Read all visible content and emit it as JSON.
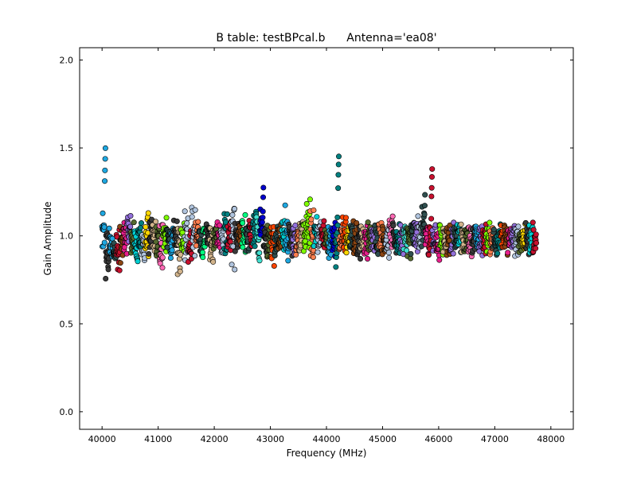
{
  "chart_data": {
    "type": "scatter",
    "title": "B table: testBPcal.b      Antenna='ea08'",
    "xlabel": "Frequency (MHz)",
    "ylabel": "Gain Amplitude",
    "xlim": [
      39600,
      48400
    ],
    "ylim": [
      -0.1,
      2.07
    ],
    "xticks": [
      40000,
      41000,
      42000,
      43000,
      44000,
      45000,
      46000,
      47000,
      48000
    ],
    "yticks": [
      0.0,
      0.5,
      1.0,
      1.5,
      2.0
    ],
    "xtick_labels": [
      "40000",
      "41000",
      "42000",
      "43000",
      "44000",
      "45000",
      "46000",
      "47000",
      "48000"
    ],
    "ytick_labels": [
      "0.0",
      "0.5",
      "1.0",
      "1.5",
      "2.0"
    ],
    "grid": false,
    "legend": "none",
    "marker": "circle",
    "marker_edge_color": "#000000",
    "spw_start": 40000,
    "spw_width": 64,
    "channels_per_spw": 16,
    "palette": [
      "#1ea7e0",
      "#3a3a3a",
      "#c8102e",
      "#e91e8c",
      "#ffd700",
      "#7fff00",
      "#00ced1",
      "#8b4513",
      "#ff7f50",
      "#9370db",
      "#008080",
      "#b0c4de",
      "#ff69b4",
      "#00ff7f",
      "#0000cd",
      "#d2b48c",
      "#2f4f4f",
      "#ff4500",
      "#556b2f",
      "#40e0d0"
    ],
    "spectral_windows": [
      {
        "center": 1.0,
        "spread": 0.24,
        "color": "#1ea7e0",
        "spike": [
          1.49,
          1.5
        ]
      },
      {
        "center": 0.92,
        "spread": 0.3,
        "color": "#3a3a3a"
      },
      {
        "center": 0.95,
        "spread": 0.14,
        "color": "#1ea7e0"
      },
      {
        "center": 0.92,
        "spread": 0.1,
        "color": "#2f4f4f"
      },
      {
        "center": 0.9,
        "spread": 0.25,
        "color": "#c8102e"
      },
      {
        "center": 0.95,
        "spread": 0.18,
        "color": "#8b4513"
      },
      {
        "center": 1.0,
        "spread": 0.16,
        "color": "#e91e8c"
      },
      {
        "center": 1.02,
        "spread": 0.16,
        "color": "#9370db"
      },
      {
        "center": 0.98,
        "spread": 0.16,
        "color": "#556b2f"
      },
      {
        "center": 0.95,
        "spread": 0.18,
        "color": "#00ced1"
      },
      {
        "center": 0.98,
        "spread": 0.14,
        "color": "#008080"
      },
      {
        "center": 0.95,
        "spread": 0.16,
        "color": "#b0c4de"
      },
      {
        "center": 0.98,
        "spread": 0.3,
        "color": "#ffd700"
      },
      {
        "center": 1.0,
        "spread": 0.16,
        "color": "#3a3a3a"
      },
      {
        "center": 0.98,
        "spread": 0.16,
        "color": "#d2b48c"
      },
      {
        "center": 0.96,
        "spread": 0.18,
        "color": "#556b2f"
      },
      {
        "center": 0.96,
        "spread": 0.26,
        "color": "#ff69b4"
      },
      {
        "center": 1.0,
        "spread": 0.15,
        "color": "#7fff00"
      },
      {
        "center": 0.98,
        "spread": 0.14,
        "color": "#2f4f4f"
      },
      {
        "center": 0.96,
        "spread": 0.16,
        "color": "#1ea7e0"
      },
      {
        "center": 1.0,
        "spread": 0.13,
        "color": "#3a3a3a"
      },
      {
        "center": 0.92,
        "spread": 0.24,
        "color": "#d2b48c"
      },
      {
        "center": 1.0,
        "spread": 0.16,
        "color": "#7fff00"
      },
      {
        "center": 1.0,
        "spread": 0.26,
        "color": "#b0c4de"
      },
      {
        "center": 0.96,
        "spread": 0.16,
        "color": "#c8102e"
      },
      {
        "center": 1.02,
        "spread": 0.24,
        "color": "#b0c4de"
      },
      {
        "center": 1.0,
        "spread": 0.16,
        "color": "#ff7f50"
      },
      {
        "center": 0.96,
        "spread": 0.14,
        "color": "#2f4f4f"
      },
      {
        "center": 0.98,
        "spread": 0.16,
        "color": "#00ff7f"
      },
      {
        "center": 1.0,
        "spread": 0.12,
        "color": "#3a3a3a"
      },
      {
        "center": 0.96,
        "spread": 0.16,
        "color": "#d2b48c"
      },
      {
        "center": 1.0,
        "spread": 0.12,
        "color": "#556b2f"
      },
      {
        "center": 1.0,
        "spread": 0.16,
        "color": "#e91e8c"
      },
      {
        "center": 0.96,
        "spread": 0.16,
        "color": "#b0c4de"
      },
      {
        "center": 1.0,
        "spread": 0.24,
        "color": "#008080"
      },
      {
        "center": 1.0,
        "spread": 0.18,
        "color": "#c8102e"
      },
      {
        "center": 1.0,
        "spread": 0.28,
        "color": "#b0c4de"
      },
      {
        "center": 0.98,
        "spread": 0.14,
        "color": "#3a3a3a"
      },
      {
        "center": 1.0,
        "spread": 0.14,
        "color": "#8b4513"
      },
      {
        "center": 1.02,
        "spread": 0.18,
        "color": "#00ff7f"
      },
      {
        "center": 0.98,
        "spread": 0.14,
        "color": "#2f4f4f"
      },
      {
        "center": 1.0,
        "spread": 0.16,
        "color": "#c8102e"
      },
      {
        "center": 1.02,
        "spread": 0.22,
        "color": "#008080"
      },
      {
        "center": 0.98,
        "spread": 0.24,
        "color": "#40e0d0"
      },
      {
        "center": 1.08,
        "spread": 0.16,
        "color": "#0000cd",
        "spike": [
          1.25,
          1.3
        ]
      },
      {
        "center": 0.98,
        "spread": 0.14,
        "color": "#3a3a3a"
      },
      {
        "center": 0.98,
        "spread": 0.16,
        "color": "#556b2f"
      },
      {
        "center": 0.96,
        "spread": 0.2,
        "color": "#ff4500"
      },
      {
        "center": 0.98,
        "spread": 0.16,
        "color": "#2f4f4f"
      },
      {
        "center": 1.0,
        "spread": 0.14,
        "color": "#8b4513"
      },
      {
        "center": 1.0,
        "spread": 0.18,
        "color": "#00ced1"
      },
      {
        "center": 1.0,
        "spread": 0.26,
        "color": "#1ea7e0"
      },
      {
        "center": 0.98,
        "spread": 0.14,
        "color": "#3a3a3a"
      },
      {
        "center": 0.96,
        "spread": 0.2,
        "color": "#9370db"
      },
      {
        "center": 1.0,
        "spread": 0.16,
        "color": "#ff7f50"
      },
      {
        "center": 1.0,
        "spread": 0.14,
        "color": "#d2b48c"
      },
      {
        "center": 1.0,
        "spread": 0.18,
        "color": "#7fff00"
      },
      {
        "center": 1.05,
        "spread": 0.24,
        "color": "#7fff00"
      },
      {
        "center": 1.0,
        "spread": 0.22,
        "color": "#ff7f50"
      },
      {
        "center": 1.02,
        "spread": 0.18,
        "color": "#00ced1"
      },
      {
        "center": 1.0,
        "spread": 0.16,
        "color": "#b0c4de"
      },
      {
        "center": 1.0,
        "spread": 0.16,
        "color": "#c8102e"
      },
      {
        "center": 0.98,
        "spread": 0.14,
        "color": "#556b2f"
      },
      {
        "center": 0.96,
        "spread": 0.16,
        "color": "#1ea7e0"
      },
      {
        "center": 0.98,
        "spread": 0.16,
        "color": "#0000cd"
      },
      {
        "center": 1.0,
        "spread": 0.3,
        "color": "#008080",
        "spike": [
          1.45,
          1.47
        ]
      },
      {
        "center": 0.98,
        "spread": 0.16,
        "color": "#ff7f50"
      },
      {
        "center": 1.0,
        "spread": 0.2,
        "color": "#ff4500"
      },
      {
        "center": 0.98,
        "spread": 0.14,
        "color": "#ffd700"
      },
      {
        "center": 1.0,
        "spread": 0.14,
        "color": "#2f4f4f"
      },
      {
        "center": 0.98,
        "spread": 0.16,
        "color": "#8b4513"
      },
      {
        "center": 0.98,
        "spread": 0.16,
        "color": "#3a3a3a"
      },
      {
        "center": 0.98,
        "spread": 0.14,
        "color": "#d2b48c"
      },
      {
        "center": 0.98,
        "spread": 0.16,
        "color": "#e91e8c"
      },
      {
        "center": 0.98,
        "spread": 0.16,
        "color": "#556b2f"
      },
      {
        "center": 0.98,
        "spread": 0.16,
        "color": "#9370db"
      },
      {
        "center": 0.98,
        "spread": 0.14,
        "color": "#2f4f4f"
      },
      {
        "center": 1.0,
        "spread": 0.14,
        "color": "#ff7f50"
      },
      {
        "center": 0.98,
        "spread": 0.14,
        "color": "#8b4513"
      },
      {
        "center": 0.98,
        "spread": 0.16,
        "color": "#b0c4de"
      },
      {
        "center": 1.0,
        "spread": 0.16,
        "color": "#ff69b4"
      },
      {
        "center": 0.98,
        "spread": 0.14,
        "color": "#3a3a3a"
      },
      {
        "center": 0.98,
        "spread": 0.16,
        "color": "#008080"
      },
      {
        "center": 0.98,
        "spread": 0.14,
        "color": "#9370db"
      },
      {
        "center": 1.0,
        "spread": 0.14,
        "color": "#40e0d0"
      },
      {
        "center": 0.98,
        "spread": 0.16,
        "color": "#556b2f"
      },
      {
        "center": 1.0,
        "spread": 0.2,
        "color": "#2f4f4f"
      },
      {
        "center": 1.0,
        "spread": 0.16,
        "color": "#9370db"
      },
      {
        "center": 1.0,
        "spread": 0.18,
        "color": "#b0c4de"
      },
      {
        "center": 1.05,
        "spread": 0.2,
        "color": "#2f4f4f",
        "spike": [
          1.22,
          1.25
        ]
      },
      {
        "center": 1.0,
        "spread": 0.16,
        "color": "#e91e8c"
      },
      {
        "center": 1.0,
        "spread": 0.24,
        "color": "#c8102e",
        "spike": [
          1.38,
          1.42
        ]
      },
      {
        "center": 0.98,
        "spread": 0.14,
        "color": "#9370db"
      },
      {
        "center": 0.96,
        "spread": 0.14,
        "color": "#e91e8c"
      },
      {
        "center": 0.98,
        "spread": 0.14,
        "color": "#7fff00"
      },
      {
        "center": 0.98,
        "spread": 0.14,
        "color": "#d2b48c"
      },
      {
        "center": 0.98,
        "spread": 0.14,
        "color": "#8b4513"
      },
      {
        "center": 0.98,
        "spread": 0.14,
        "color": "#9370db"
      },
      {
        "center": 0.98,
        "spread": 0.14,
        "color": "#2f4f4f"
      },
      {
        "center": 1.0,
        "spread": 0.14,
        "color": "#00ced1"
      },
      {
        "center": 0.98,
        "spread": 0.14,
        "color": "#d2b48c"
      },
      {
        "center": 0.98,
        "spread": 0.14,
        "color": "#556b2f"
      },
      {
        "center": 0.98,
        "spread": 0.14,
        "color": "#ff69b4"
      },
      {
        "center": 0.98,
        "spread": 0.14,
        "color": "#3a3a3a"
      },
      {
        "center": 0.98,
        "spread": 0.14,
        "color": "#1ea7e0"
      },
      {
        "center": 0.98,
        "spread": 0.14,
        "color": "#9370db"
      },
      {
        "center": 0.98,
        "spread": 0.14,
        "color": "#c8102e"
      },
      {
        "center": 0.98,
        "spread": 0.14,
        "color": "#7fff00"
      },
      {
        "center": 0.98,
        "spread": 0.14,
        "color": "#ff7f50"
      },
      {
        "center": 0.98,
        "spread": 0.14,
        "color": "#2f4f4f"
      },
      {
        "center": 0.98,
        "spread": 0.14,
        "color": "#008080"
      },
      {
        "center": 0.98,
        "spread": 0.14,
        "color": "#ff4500"
      },
      {
        "center": 0.98,
        "spread": 0.14,
        "color": "#8b4513"
      },
      {
        "center": 0.98,
        "spread": 0.14,
        "color": "#e91e8c"
      },
      {
        "center": 0.98,
        "spread": 0.14,
        "color": "#9370db"
      },
      {
        "center": 0.98,
        "spread": 0.14,
        "color": "#b0c4de"
      },
      {
        "center": 0.98,
        "spread": 0.14,
        "color": "#556b2f"
      },
      {
        "center": 0.98,
        "spread": 0.14,
        "color": "#ffd700"
      },
      {
        "center": 0.98,
        "spread": 0.14,
        "color": "#3a3a3a"
      },
      {
        "center": 0.98,
        "spread": 0.14,
        "color": "#00ced1"
      },
      {
        "center": 0.98,
        "spread": 0.14,
        "color": "#c8102e"
      }
    ]
  }
}
